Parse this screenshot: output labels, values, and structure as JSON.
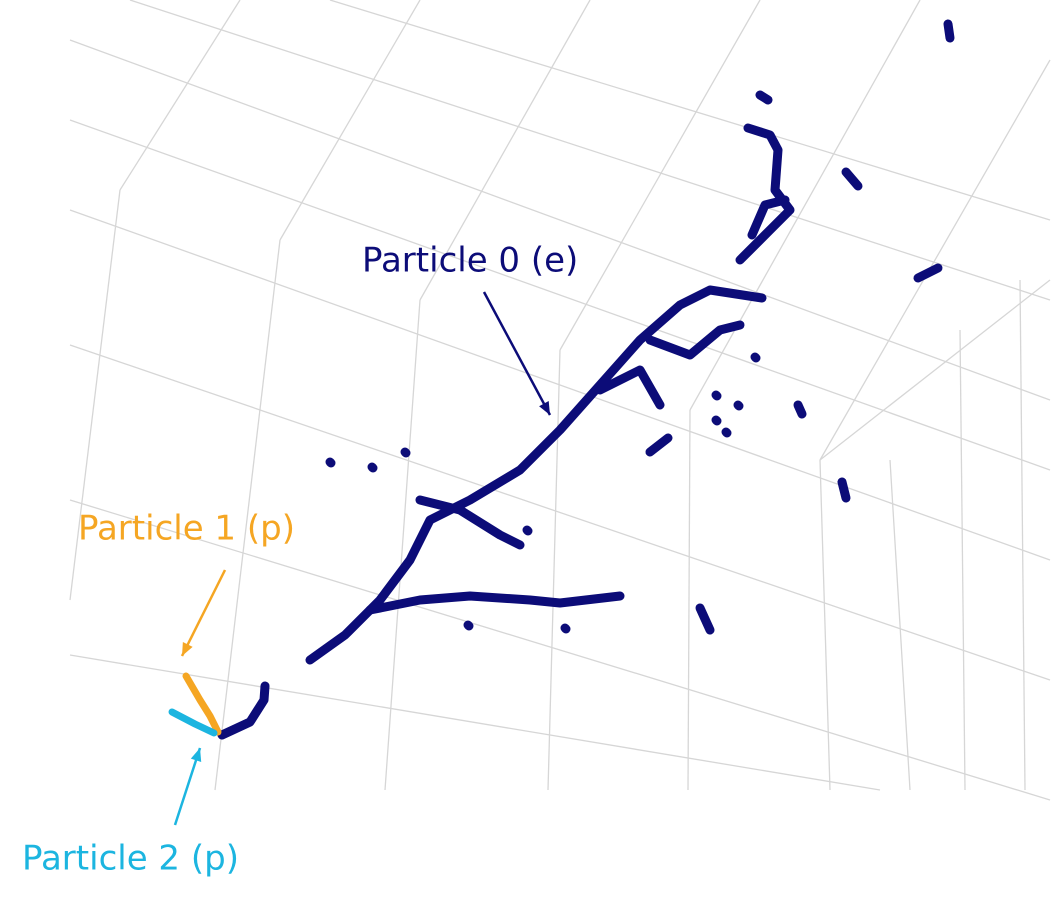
{
  "annotations": [
    {
      "label": "Particle 0 (e)",
      "color": "#0c0c78"
    },
    {
      "label": "Particle 1 (p)",
      "color": "#f5a623"
    },
    {
      "label": "Particle 2 (p)",
      "color": "#1cb5e0"
    }
  ]
}
